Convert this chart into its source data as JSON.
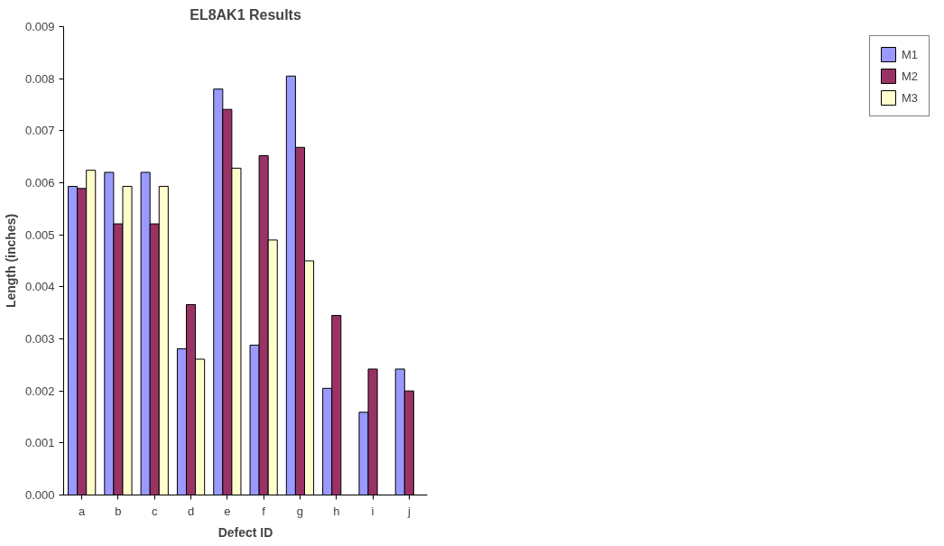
{
  "chart_data": {
    "type": "bar",
    "title": "EL8AK1 Results",
    "xlabel": "Defect ID",
    "ylabel": "Length (inches)",
    "categories": [
      "a",
      "b",
      "c",
      "d",
      "e",
      "f",
      "g",
      "h",
      "i",
      "j"
    ],
    "series": [
      {
        "name": "M1",
        "color": "#9999ff",
        "values": [
          0.00593,
          0.0062,
          0.0062,
          0.00281,
          0.0078,
          0.00288,
          0.00805,
          0.00205,
          0.00159,
          0.00242
        ]
      },
      {
        "name": "M2",
        "color": "#993366",
        "values": [
          0.00589,
          0.00521,
          0.00521,
          0.00366,
          0.00741,
          0.00652,
          0.00668,
          0.00345,
          0.00242,
          0.002
        ]
      },
      {
        "name": "M3",
        "color": "#ffffcc",
        "values": [
          0.00624,
          0.00593,
          0.00593,
          0.00261,
          0.00628,
          0.0049,
          0.0045,
          null,
          null,
          null
        ]
      }
    ],
    "ylim": [
      0,
      0.009
    ],
    "yticks": [
      {
        "value": 0,
        "label": "0.000"
      },
      {
        "value": 0.001,
        "label": "0.001"
      },
      {
        "value": 0.002,
        "label": "0.002"
      },
      {
        "value": 0.003,
        "label": "0.003"
      },
      {
        "value": 0.004,
        "label": "0.004"
      },
      {
        "value": 0.005,
        "label": "0.005"
      },
      {
        "value": 0.006,
        "label": "0.006"
      },
      {
        "value": 0.007,
        "label": "0.007"
      },
      {
        "value": 0.008,
        "label": "0.008"
      },
      {
        "value": 0.009,
        "label": "0.009"
      }
    ],
    "grid": false,
    "legend": "right"
  }
}
